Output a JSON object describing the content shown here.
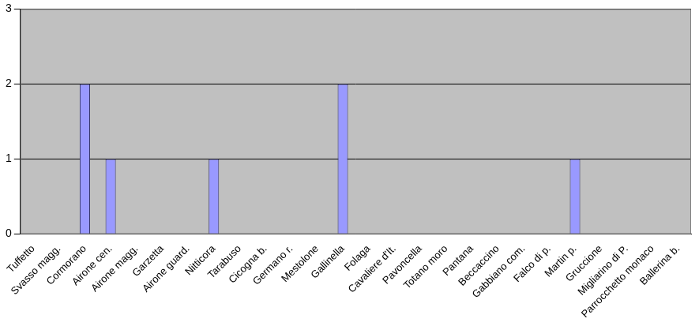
{
  "chart_data": {
    "type": "bar",
    "categories": [
      "Tuffetto",
      "Svasso magg.",
      "Cormorano",
      "Airone cen.",
      "Airone magg.",
      "Garzetta",
      "Airone guard.",
      "Nitticora",
      "Tarabuso",
      "Cicogna b.",
      "Germano r.",
      "Mestolone",
      "Gallinella",
      "Folaga",
      "Cavaliere d'It.",
      "Pavoncella",
      "Totano moro",
      "Pantana",
      "Beccaccino",
      "Gabbiano com.",
      "Falco di p.",
      "Martin p.",
      "Gruccione",
      "Migliarino di P.",
      "Parrocchetto monaco",
      "Ballerina b."
    ],
    "values": [
      0,
      0,
      2,
      1,
      0,
      0,
      0,
      1,
      0,
      0,
      0,
      0,
      2,
      0,
      0,
      0,
      0,
      0,
      0,
      0,
      0,
      1,
      0,
      0,
      0,
      0
    ],
    "color": "#9999ff",
    "ylim": [
      0,
      3
    ],
    "yticks": [
      0,
      1,
      2,
      3
    ],
    "grid": true
  }
}
